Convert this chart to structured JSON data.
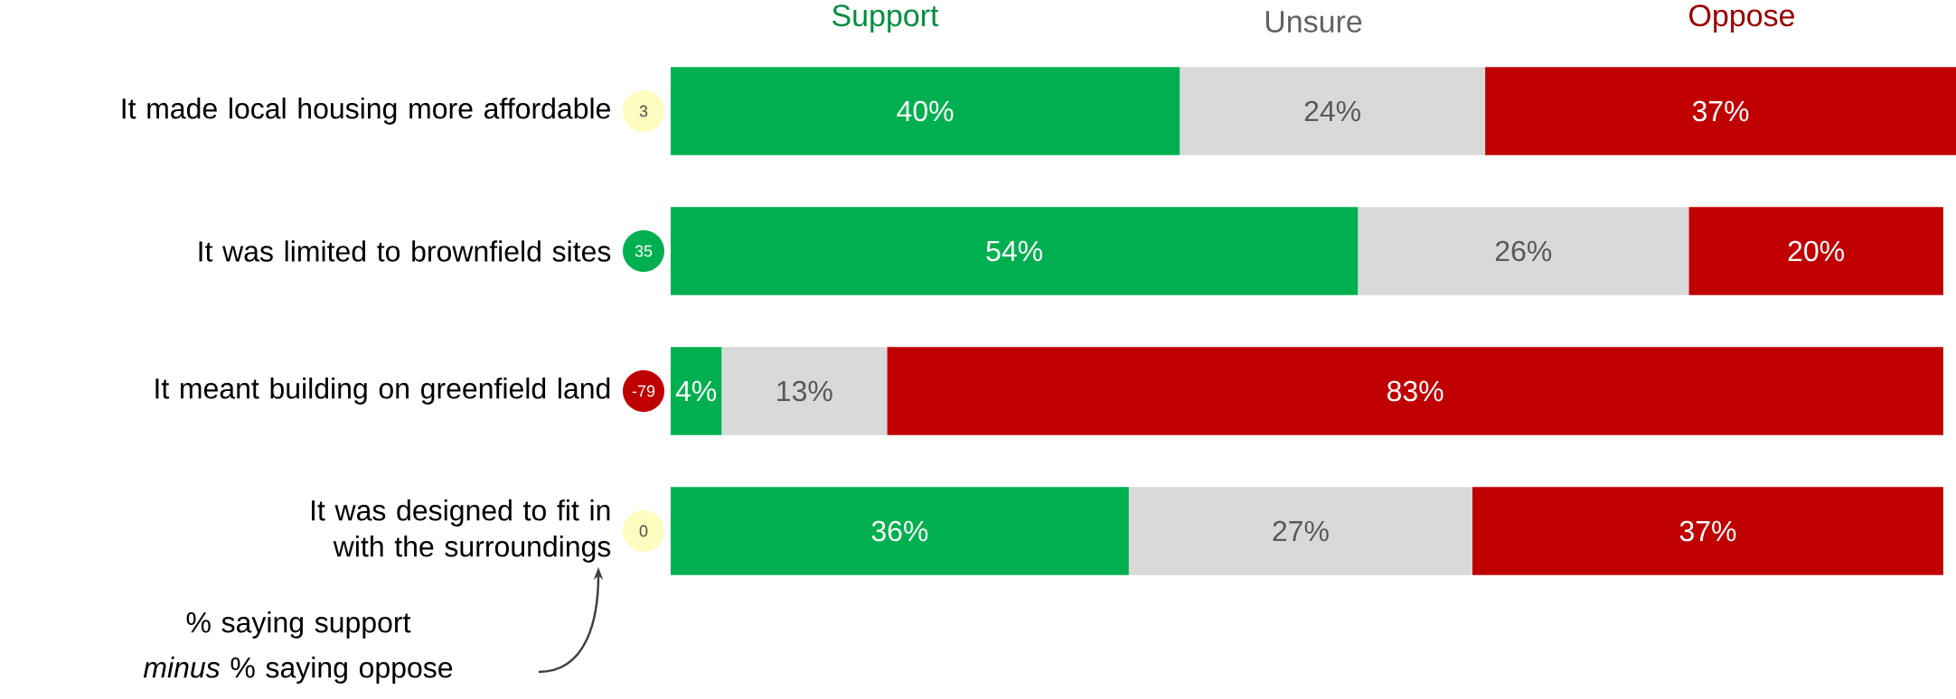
{
  "chart_data": {
    "type": "bar",
    "orientation": "horizontal",
    "stacked": true,
    "legend": "top",
    "tick_labels": "y",
    "xlim": [
      0,
      101
    ],
    "categories": [
      "It made local housing more affordable",
      "It was limited to brownfield sites",
      "It meant building on greenfield land",
      "It was designed to fit in with the surroundings"
    ],
    "series": [
      {
        "name": "Support",
        "color": "#00b050",
        "values": [
          40,
          54,
          4,
          36
        ],
        "value_labels": [
          "40%",
          "54%",
          "4%",
          "36%"
        ]
      },
      {
        "name": "Unsure",
        "color": "#d9d9d9",
        "values": [
          24,
          26,
          13,
          27
        ],
        "value_labels": [
          "24%",
          "26%",
          "13%",
          "27%"
        ]
      },
      {
        "name": "Oppose",
        "color": "#c00000",
        "values": [
          37,
          20,
          83,
          37
        ],
        "value_labels": [
          "37%",
          "20%",
          "83%",
          "37%"
        ]
      }
    ],
    "annotations": [
      "3",
      "35",
      "-79",
      "0",
      "% saying support *minus* % saying oppose"
    ]
  }
}
